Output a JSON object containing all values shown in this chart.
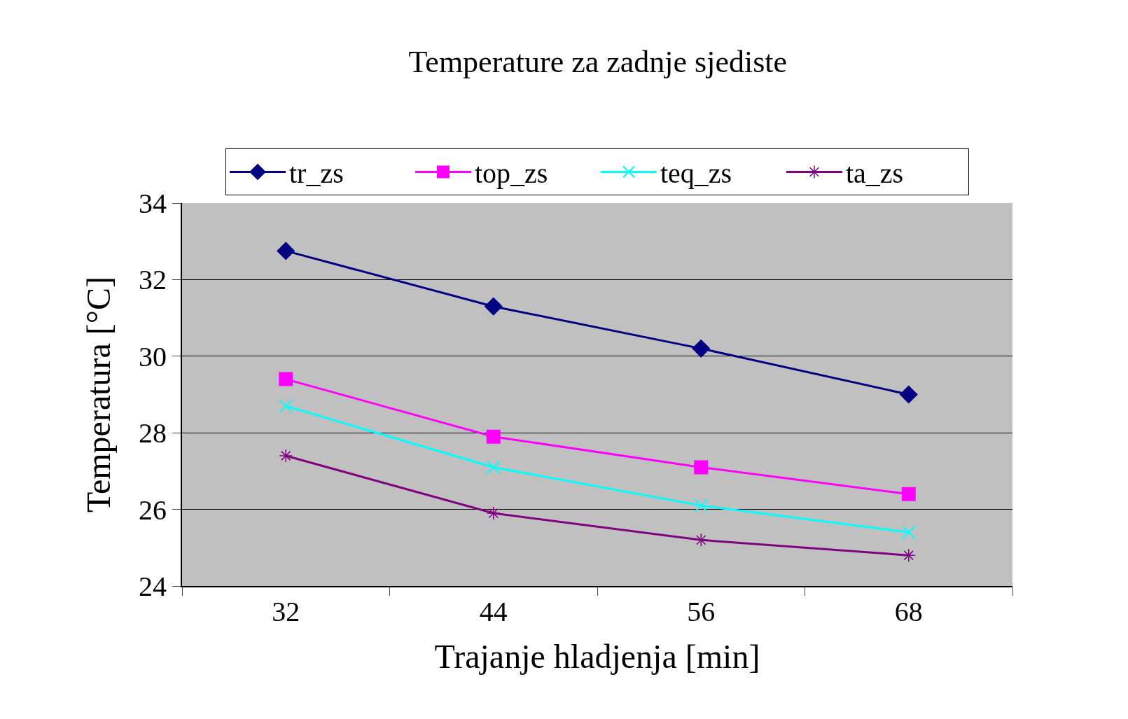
{
  "chart_data": {
    "type": "line",
    "title": "Temperature za zadnje sjediste",
    "xlabel": "Trajanje hladjenja [min]",
    "ylabel": "Temperatura [°C]",
    "categories": [
      "32",
      "44",
      "56",
      "68"
    ],
    "series": [
      {
        "name": "tr_zs",
        "color": "#000080",
        "marker": "diamond",
        "values": [
          32.75,
          31.3,
          30.2,
          29.0
        ]
      },
      {
        "name": "top_zs",
        "color": "#ff00ff",
        "marker": "square",
        "values": [
          29.4,
          27.9,
          27.1,
          26.4
        ]
      },
      {
        "name": "teq_zs",
        "color": "#00ffff",
        "marker": "cross",
        "values": [
          28.7,
          27.1,
          26.1,
          25.4
        ]
      },
      {
        "name": "ta_zs",
        "color": "#800080",
        "marker": "cross",
        "values": [
          27.4,
          25.9,
          25.2,
          24.8
        ]
      }
    ],
    "ylim": [
      24,
      34
    ],
    "yticks": [
      24,
      26,
      28,
      30,
      32,
      34
    ],
    "grid": "y",
    "legend": "top",
    "line_style": "solid"
  }
}
